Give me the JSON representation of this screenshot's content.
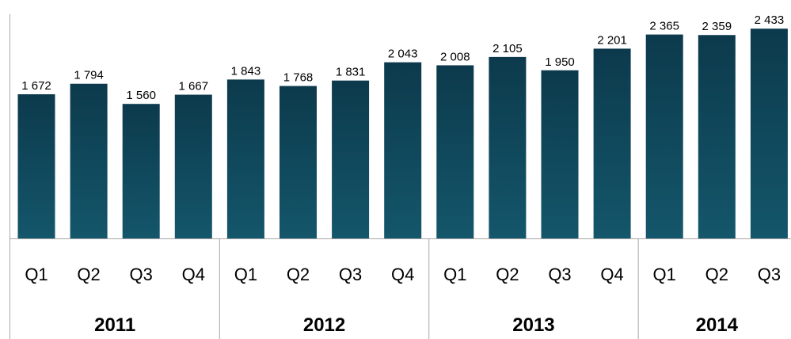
{
  "chart_data": {
    "type": "bar",
    "categories": [
      "Q1",
      "Q2",
      "Q3",
      "Q4",
      "Q1",
      "Q2",
      "Q3",
      "Q4",
      "Q1",
      "Q2",
      "Q3",
      "Q4",
      "Q1",
      "Q2",
      "Q3"
    ],
    "groups": [
      {
        "label": "2011",
        "count": 4
      },
      {
        "label": "2012",
        "count": 4
      },
      {
        "label": "2013",
        "count": 4
      },
      {
        "label": "2014",
        "count": 3
      }
    ],
    "values": [
      1672,
      1794,
      1560,
      1667,
      1843,
      1768,
      1831,
      2043,
      2008,
      2105,
      1950,
      2201,
      2365,
      2359,
      2433
    ],
    "value_labels": [
      "1 672",
      "1 794",
      "1 560",
      "1 667",
      "1 843",
      "1 768",
      "1 831",
      "2 043",
      "2 008",
      "2 105",
      "1 950",
      "2 201",
      "2 365",
      "2 359",
      "2 433"
    ],
    "title": "",
    "xlabel": "",
    "ylabel": "",
    "ylim": [
      0,
      2600
    ],
    "grid": false,
    "legend": "none",
    "bar_color_top": "#0c3a4c",
    "bar_color_bottom": "#14566b"
  }
}
